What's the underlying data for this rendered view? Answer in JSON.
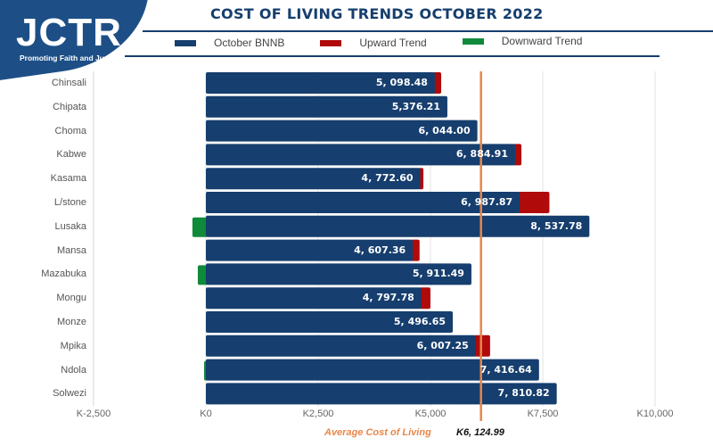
{
  "logo": {
    "name": "JCTR",
    "tagline": "Promoting Faith and Justice"
  },
  "chart_data": {
    "type": "bar",
    "orientation": "horizontal",
    "title": "COST OF LIVING TRENDS OCTOBER 2022",
    "xlabel": "",
    "ylabel": "",
    "xlim": [
      -2500,
      10000
    ],
    "xticks": [
      -2500,
      0,
      2500,
      5000,
      7500,
      10000
    ],
    "xtick_labels": [
      "K-2,500",
      "K0",
      "K2,500",
      "K5,000",
      "K7,500",
      "K10,000"
    ],
    "grid": true,
    "legend": {
      "placement": "top",
      "entries": [
        {
          "label": "October BNNB",
          "color": "#163e6e"
        },
        {
          "label": "Upward Trend",
          "color": "#b00a0a"
        },
        {
          "label": "Downward Trend",
          "color": "#0e8a3a"
        }
      ]
    },
    "categories": [
      "Chinsali",
      "Chipata",
      "Choma",
      "Kabwe",
      "Kasama",
      "L/stone",
      "Lusaka",
      "Mansa",
      "Mazabuka",
      "Mongu",
      "Monze",
      "Mpika",
      "Ndola",
      "Solwezi"
    ],
    "series": [
      {
        "name": "October BNNB",
        "values": [
          5098.48,
          5376.21,
          6044.0,
          6884.91,
          4772.6,
          6987.87,
          8537.78,
          4607.36,
          5911.49,
          4797.78,
          5496.65,
          6007.25,
          7416.64,
          7810.82
        ]
      },
      {
        "name": "Upward Trend",
        "values": [
          140,
          0,
          0,
          140,
          70,
          660,
          0,
          150,
          0,
          200,
          0,
          320,
          0,
          0
        ]
      },
      {
        "name": "Downward Trend",
        "values": [
          0,
          0,
          0,
          0,
          0,
          0,
          -300,
          0,
          -180,
          0,
          0,
          0,
          -40,
          0
        ]
      }
    ],
    "value_labels": [
      "5, 098.48",
      "5,376.21",
      "6, 044.00",
      "6, 884.91",
      "4, 772.60",
      "6, 987.87",
      "8, 537.78",
      "4, 607.36",
      "5, 911.49",
      "4, 797.78",
      "5, 496.65",
      "6, 007.25",
      "7, 416.64",
      "7, 810.82"
    ],
    "reference_line": {
      "label": "Average Cost of Living",
      "value": 6124.99,
      "value_label": "K6, 124.99",
      "color": "#e8874a"
    }
  }
}
